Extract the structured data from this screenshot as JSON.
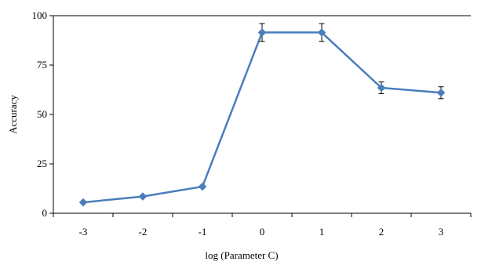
{
  "chart_data": {
    "type": "line",
    "title": "",
    "xlabel": "log (Parameter C)",
    "ylabel": "Accuracy",
    "categories": [
      "-3",
      "-2",
      "-1",
      "0",
      "1",
      "2",
      "3"
    ],
    "ylim": [
      0,
      100
    ],
    "yticks": [
      "0",
      "25",
      "50",
      "75",
      "100"
    ],
    "grid": false,
    "series": [
      {
        "color": "#4a7ebb",
        "marker": "diamond",
        "values": [
          5.5,
          8.5,
          13.5,
          91.5,
          91.5,
          63.5,
          61
        ],
        "error": [
          0,
          0,
          0,
          4.5,
          4.5,
          3,
          3
        ]
      }
    ]
  }
}
